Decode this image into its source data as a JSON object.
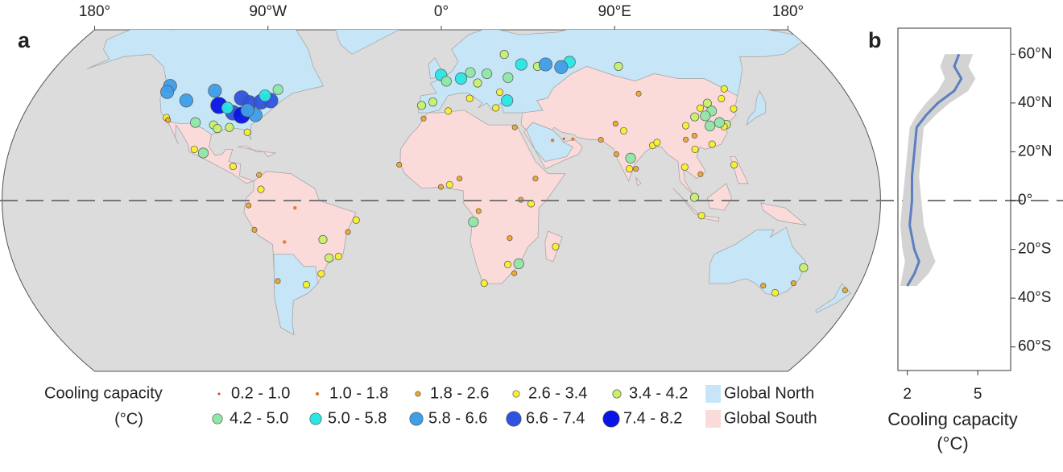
{
  "chart_data": [
    {
      "type": "map",
      "panel_label": "a",
      "ylim": [
        -70,
        70
      ],
      "xticks": [
        {
          "value": -180,
          "label": "180°"
        },
        {
          "value": -90,
          "label": "90°W"
        },
        {
          "value": 0,
          "label": "0°"
        },
        {
          "value": 90,
          "label": "90°E"
        },
        {
          "value": 180,
          "label": "180°"
        }
      ],
      "legend_title": [
        "Cooling capacity",
        "(°C)"
      ],
      "bins": [
        0.2,
        1.0,
        1.8,
        2.6,
        3.4,
        4.2,
        5.0,
        5.8,
        6.6,
        7.4,
        8.2
      ],
      "classes": [
        "0.2 - 1.0",
        "1.0 - 1.8",
        "1.8 - 2.6",
        "2.6 - 3.4",
        "3.4 - 4.2",
        "4.2 - 5.0",
        "5.0 - 5.8",
        "5.8 - 6.6",
        "6.6 - 7.4",
        "7.4 - 8.2"
      ],
      "colors": [
        "#d83a1a",
        "#e0782a",
        "#f0a72a",
        "#f6f02a",
        "#c8f06a",
        "#8ee8a6",
        "#2ae6e6",
        "#3e9ee8",
        "#2f52e0",
        "#0a14e6"
      ],
      "regions": [
        {
          "name": "Global North",
          "color": "#c6e6f7"
        },
        {
          "name": "Global South",
          "color": "#fbdada"
        }
      ],
      "points": [
        {
          "lon": -97,
          "lat": 39,
          "value": 7.6
        },
        {
          "lon": -88,
          "lat": 42,
          "value": 7.0
        },
        {
          "lon": -84,
          "lat": 40,
          "value": 7.3
        },
        {
          "lon": -79,
          "lat": 40.5,
          "value": 6.9
        },
        {
          "lon": -75,
          "lat": 41,
          "value": 6.8
        },
        {
          "lon": -90,
          "lat": 36,
          "value": 6.8
        },
        {
          "lon": -86,
          "lat": 35,
          "value": 7.5
        },
        {
          "lon": -122,
          "lat": 47,
          "value": 6.2
        },
        {
          "lon": -122,
          "lat": 44.5,
          "value": 6.0
        },
        {
          "lon": -112,
          "lat": 41,
          "value": 6.0
        },
        {
          "lon": -101,
          "lat": 45,
          "value": 6.2
        },
        {
          "lon": -80,
          "lat": 35,
          "value": 6.0
        },
        {
          "lon": -78,
          "lat": 43,
          "value": 5.5
        },
        {
          "lon": -93,
          "lat": 38,
          "value": 5.4
        },
        {
          "lon": -84,
          "lat": 37,
          "value": 5.8
        },
        {
          "lon": -118,
          "lat": 34,
          "value": 3.0
        },
        {
          "lon": -117,
          "lat": 33,
          "value": 2.0
        },
        {
          "lon": -105,
          "lat": 32,
          "value": 4.5
        },
        {
          "lon": -97,
          "lat": 31,
          "value": 4.0
        },
        {
          "lon": -95,
          "lat": 29.5,
          "value": 3.8
        },
        {
          "lon": -90,
          "lat": 30,
          "value": 3.5
        },
        {
          "lon": -82,
          "lat": 28,
          "value": 2.8
        },
        {
          "lon": -73,
          "lat": 45.5,
          "value": 4.5
        },
        {
          "lon": -99,
          "lat": 19.5,
          "value": 4.6
        },
        {
          "lon": -103,
          "lat": 21,
          "value": 2.8
        },
        {
          "lon": -86,
          "lat": 14,
          "value": 3.0
        },
        {
          "lon": -75,
          "lat": 10.5,
          "value": 2.0
        },
        {
          "lon": -74,
          "lat": 4.6,
          "value": 3.0
        },
        {
          "lon": -79,
          "lat": -2,
          "value": 2.2
        },
        {
          "lon": -77,
          "lat": -12,
          "value": 2.0
        },
        {
          "lon": -70,
          "lat": -33,
          "value": 2.4
        },
        {
          "lon": -58,
          "lat": -34.5,
          "value": 2.6
        },
        {
          "lon": -47,
          "lat": -23.5,
          "value": 3.5
        },
        {
          "lon": -43,
          "lat": -22.9,
          "value": 3.0
        },
        {
          "lon": -49,
          "lat": -16,
          "value": 3.8
        },
        {
          "lon": -38.5,
          "lat": -12.9,
          "value": 2.5
        },
        {
          "lon": -35,
          "lat": -8,
          "value": 3.0
        },
        {
          "lon": -60,
          "lat": -3,
          "value": 1.5
        },
        {
          "lon": -51,
          "lat": -30,
          "value": 3.0
        },
        {
          "lon": -65,
          "lat": -17,
          "value": 1.0
        },
        {
          "lon": -0.1,
          "lat": 51.5,
          "value": 5.2
        },
        {
          "lon": 2.3,
          "lat": 48.9,
          "value": 4.5
        },
        {
          "lon": 13.4,
          "lat": 52.5,
          "value": 4.2
        },
        {
          "lon": 9,
          "lat": 50,
          "value": 5.4
        },
        {
          "lon": 21,
          "lat": 52,
          "value": 4.3
        },
        {
          "lon": -3.7,
          "lat": 40.4,
          "value": 3.8
        },
        {
          "lon": 12.5,
          "lat": 41.9,
          "value": 3.2
        },
        {
          "lon": -8.6,
          "lat": 39,
          "value": 3.5
        },
        {
          "lon": 16.4,
          "lat": 48.2,
          "value": 4.0
        },
        {
          "lon": 30.5,
          "lat": 50.4,
          "value": 4.4
        },
        {
          "lon": 37.6,
          "lat": 55.8,
          "value": 5.6
        },
        {
          "lon": 45,
          "lat": 55,
          "value": 4.0
        },
        {
          "lon": 49,
          "lat": 55.8,
          "value": 6.0
        },
        {
          "lon": 30.3,
          "lat": 59.9,
          "value": 4.0
        },
        {
          "lon": 26,
          "lat": 44.4,
          "value": 3.0
        },
        {
          "lon": 28.9,
          "lat": 41,
          "value": 5.0
        },
        {
          "lon": 23.7,
          "lat": 38,
          "value": 3.0
        },
        {
          "lon": 60.6,
          "lat": 56.8,
          "value": 5.2
        },
        {
          "lon": 56,
          "lat": 54.7,
          "value": 6.2
        },
        {
          "lon": 82.9,
          "lat": 55,
          "value": 4.0
        },
        {
          "lon": 31.2,
          "lat": 30,
          "value": 2.0
        },
        {
          "lon": 3,
          "lat": 36.7,
          "value": 3.0
        },
        {
          "lon": -7.6,
          "lat": 33.6,
          "value": 2.4
        },
        {
          "lon": 46.7,
          "lat": 24.7,
          "value": 1.2
        },
        {
          "lon": 51.5,
          "lat": 25.3,
          "value": 0.8
        },
        {
          "lon": 55.3,
          "lat": 25.2,
          "value": 1.5
        },
        {
          "lon": -17.4,
          "lat": 14.7,
          "value": 2.2
        },
        {
          "lon": 3.4,
          "lat": 6.5,
          "value": 2.8
        },
        {
          "lon": 7.5,
          "lat": 9,
          "value": 2.0
        },
        {
          "lon": -0.2,
          "lat": 5.6,
          "value": 2.5
        },
        {
          "lon": 32.6,
          "lat": 0.3,
          "value": 2.4
        },
        {
          "lon": 36.8,
          "lat": -1.3,
          "value": 3.2
        },
        {
          "lon": 38.7,
          "lat": 9,
          "value": 2.2
        },
        {
          "lon": 15.3,
          "lat": -4.3,
          "value": 2.5
        },
        {
          "lon": 13.2,
          "lat": -8.8,
          "value": 4.6
        },
        {
          "lon": 28,
          "lat": -26.2,
          "value": 3.0
        },
        {
          "lon": 31,
          "lat": -29.8,
          "value": 2.5
        },
        {
          "lon": 18.4,
          "lat": -33.9,
          "value": 2.8
        },
        {
          "lon": 32.6,
          "lat": -25.9,
          "value": 4.6
        },
        {
          "lon": 47.5,
          "lat": -18.9,
          "value": 2.8
        },
        {
          "lon": 28.3,
          "lat": -15.4,
          "value": 2.5
        },
        {
          "lon": 72.8,
          "lat": 19,
          "value": 2.5
        },
        {
          "lon": 77.2,
          "lat": 28.6,
          "value": 3.2
        },
        {
          "lon": 80.3,
          "lat": 13,
          "value": 2.4
        },
        {
          "lon": 88.4,
          "lat": 22.6,
          "value": 2.6
        },
        {
          "lon": 90.4,
          "lat": 23.8,
          "value": 2.8
        },
        {
          "lon": 67,
          "lat": 24.9,
          "value": 2.0
        },
        {
          "lon": 74.3,
          "lat": 31.5,
          "value": 2.5
        },
        {
          "lon": 77.6,
          "lat": 13,
          "value": 3.0
        },
        {
          "lon": 78.5,
          "lat": 17.4,
          "value": 4.5
        },
        {
          "lon": 100.5,
          "lat": 13.7,
          "value": 3.0
        },
        {
          "lon": 106.8,
          "lat": -6.2,
          "value": 3.2
        },
        {
          "lon": 103.8,
          "lat": 1.3,
          "value": 3.8
        },
        {
          "lon": 121,
          "lat": 14.6,
          "value": 2.8
        },
        {
          "lon": 106.7,
          "lat": 10.8,
          "value": 2.2
        },
        {
          "lon": 105.8,
          "lat": 21,
          "value": 2.8
        },
        {
          "lon": 116.4,
          "lat": 39.9,
          "value": 4.0
        },
        {
          "lon": 121.5,
          "lat": 31.2,
          "value": 3.5
        },
        {
          "lon": 113.3,
          "lat": 23.1,
          "value": 3.2
        },
        {
          "lon": 114.3,
          "lat": 30.6,
          "value": 4.4
        },
        {
          "lon": 104,
          "lat": 30.7,
          "value": 3.0
        },
        {
          "lon": 108.9,
          "lat": 34.3,
          "value": 3.6
        },
        {
          "lon": 117,
          "lat": 36.7,
          "value": 4.5
        },
        {
          "lon": 113.6,
          "lat": 34.7,
          "value": 4.2
        },
        {
          "lon": 126.9,
          "lat": 37.6,
          "value": 3.2
        },
        {
          "lon": 123.4,
          "lat": 41.8,
          "value": 3.0
        },
        {
          "lon": 87.6,
          "lat": 43.8,
          "value": 2.5
        },
        {
          "lon": 126.6,
          "lat": 45.8,
          "value": 3.0
        },
        {
          "lon": 120.2,
          "lat": 30.3,
          "value": 3.0
        },
        {
          "lon": 118.8,
          "lat": 32,
          "value": 4.2
        },
        {
          "lon": 112.5,
          "lat": 37.9,
          "value": 2.8
        },
        {
          "lon": 106.7,
          "lat": 26.6,
          "value": 2.0
        },
        {
          "lon": 102.7,
          "lat": 25,
          "value": 1.8
        },
        {
          "lon": 151.2,
          "lat": -33.9,
          "value": 2.4
        },
        {
          "lon": 153,
          "lat": -27.5,
          "value": 3.8
        },
        {
          "lon": 145,
          "lat": -37.8,
          "value": 2.8
        },
        {
          "lon": 138.6,
          "lat": -34.9,
          "value": 2.0
        },
        {
          "lon": 174.8,
          "lat": -36.8,
          "value": 1.8
        }
      ]
    },
    {
      "type": "line",
      "panel_label": "b",
      "x_label": [
        "Cooling capacity",
        "(°C)"
      ],
      "xlim": [
        1.6,
        6.4
      ],
      "xticks": [
        2,
        5
      ],
      "ylim": [
        -70,
        70
      ],
      "yticks": [
        {
          "value": 60,
          "label": "60°N"
        },
        {
          "value": 40,
          "label": "40°N"
        },
        {
          "value": 20,
          "label": "20°N"
        },
        {
          "value": 0,
          "label": "0°"
        },
        {
          "value": -20,
          "label": "20°S"
        },
        {
          "value": -40,
          "label": "40°S"
        },
        {
          "value": -60,
          "label": "60°S"
        }
      ],
      "color": "#5b7fbf",
      "band_color": "#d3d3d3",
      "y": [
        60,
        55,
        50,
        45,
        40,
        35,
        30,
        20,
        10,
        0,
        -10,
        -20,
        -25,
        -30,
        -35
      ],
      "values": [
        4.2,
        4.0,
        4.3,
        4.0,
        3.3,
        2.8,
        2.4,
        2.3,
        2.2,
        2.2,
        2.1,
        2.3,
        2.5,
        2.3,
        2.0
      ],
      "band": {
        "lower": [
          3.6,
          3.4,
          3.6,
          3.3,
          2.8,
          2.4,
          2.1,
          2.0,
          1.9,
          1.8,
          1.7,
          1.8,
          1.9,
          1.8,
          1.7
        ],
        "upper": [
          4.8,
          4.6,
          4.9,
          4.6,
          3.8,
          3.2,
          2.7,
          2.6,
          2.5,
          2.6,
          2.7,
          3.0,
          3.2,
          2.9,
          2.4
        ]
      }
    }
  ]
}
